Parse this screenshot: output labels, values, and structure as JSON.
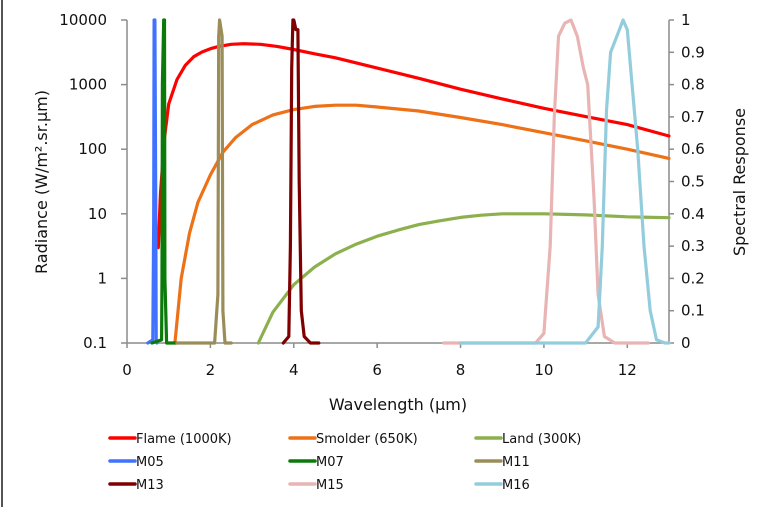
{
  "chart_data": {
    "type": "line",
    "title": "",
    "xlabel": "Wavelength (µm)",
    "ylabel": "Radiance (W/m².sr.µm)",
    "y2label": "Spectral Response",
    "xlim": [
      0,
      13
    ],
    "ylim": [
      0.1,
      10000
    ],
    "yscale": "log",
    "y2lim": [
      0,
      1
    ],
    "x_ticks": [
      "0",
      "2",
      "4",
      "6",
      "8",
      "10",
      "12"
    ],
    "x_tick_values": [
      0,
      2,
      4,
      6,
      8,
      10,
      12
    ],
    "y_ticks": [
      "0.1",
      "1",
      "10",
      "100",
      "1000",
      "10000"
    ],
    "y_tick_values": [
      0.1,
      1,
      10,
      100,
      1000,
      10000
    ],
    "y2_ticks": [
      "0",
      "0.1",
      "0.2",
      "0.3",
      "0.4",
      "0.5",
      "0.6",
      "0.7",
      "0.8",
      "0.9",
      "1"
    ],
    "y2_tick_values": [
      0,
      0.1,
      0.2,
      0.3,
      0.4,
      0.5,
      0.6,
      0.7,
      0.8,
      0.9,
      1
    ],
    "grid": false,
    "legend_position": "bottom",
    "series": [
      {
        "name": "Flame (1000K)",
        "axis": "left",
        "color": "#ff0000",
        "x": [
          0.75,
          0.8,
          0.9,
          1.0,
          1.2,
          1.4,
          1.6,
          1.8,
          2.0,
          2.2,
          2.5,
          2.8,
          3.2,
          3.6,
          4.0,
          4.5,
          5,
          6,
          7,
          8,
          9,
          10,
          11,
          12,
          13
        ],
        "y": [
          3,
          20,
          150,
          500,
          1200,
          2000,
          2700,
          3200,
          3600,
          3900,
          4200,
          4300,
          4200,
          3900,
          3500,
          3000,
          2600,
          1800,
          1250,
          850,
          600,
          430,
          320,
          240,
          160
        ]
      },
      {
        "name": "Smolder (650K)",
        "axis": "left",
        "color": "#ed7117",
        "x": [
          1.15,
          1.3,
          1.5,
          1.7,
          2.0,
          2.3,
          2.6,
          3.0,
          3.5,
          4.0,
          4.5,
          5.0,
          5.5,
          6,
          7,
          8,
          9,
          10,
          11,
          12,
          13
        ],
        "y": [
          0.1,
          1,
          5,
          15,
          40,
          90,
          150,
          240,
          340,
          410,
          460,
          480,
          480,
          450,
          390,
          310,
          240,
          180,
          135,
          100,
          72
        ]
      },
      {
        "name": "Land (300K)",
        "axis": "left",
        "color": "#8cb04e",
        "x": [
          3.15,
          3.5,
          4.0,
          4.5,
          5.0,
          5.5,
          6,
          6.5,
          7,
          7.5,
          8,
          8.5,
          9,
          10,
          11,
          12,
          13
        ],
        "y": [
          0.1,
          0.3,
          0.8,
          1.5,
          2.4,
          3.4,
          4.5,
          5.6,
          6.8,
          7.8,
          8.8,
          9.5,
          10,
          10,
          9.6,
          9.0,
          8.7
        ]
      },
      {
        "name": "M05",
        "axis": "right",
        "color": "#3f72ff",
        "x": [
          0.5,
          0.62,
          0.64,
          0.65,
          0.67,
          0.69,
          0.7,
          0.72
        ],
        "y": [
          0,
          0.01,
          0.38,
          1.0,
          1.0,
          0.4,
          0.01,
          0
        ]
      },
      {
        "name": "M07",
        "axis": "right",
        "color": "#0a7a0a",
        "x": [
          0.6,
          0.83,
          0.84,
          0.85,
          0.88,
          0.9,
          0.91,
          0.95,
          1.2
        ],
        "y": [
          0,
          0.01,
          0.2,
          0.8,
          1.0,
          1.0,
          0.2,
          0,
          0
        ]
      },
      {
        "name": "M11",
        "axis": "right",
        "color": "#9b8d5a",
        "x": [
          1.2,
          2.1,
          2.18,
          2.2,
          2.22,
          2.28,
          2.3,
          2.35,
          2.5
        ],
        "y": [
          0,
          0,
          0.15,
          0.95,
          1.0,
          0.95,
          0.1,
          0,
          0
        ]
      },
      {
        "name": "M13",
        "axis": "right",
        "color": "#7f0000",
        "x": [
          3.75,
          3.88,
          3.92,
          3.95,
          3.98,
          4.0,
          4.05,
          4.1,
          4.13,
          4.18,
          4.25,
          4.4,
          4.6
        ],
        "y": [
          0,
          0.02,
          0.3,
          0.85,
          1.0,
          1.0,
          0.97,
          0.97,
          0.5,
          0.1,
          0.02,
          0,
          0
        ]
      },
      {
        "name": "M15",
        "axis": "right",
        "color": "#e8b4b4",
        "x": [
          7.6,
          9.8,
          10.0,
          10.15,
          10.25,
          10.35,
          10.5,
          10.65,
          10.8,
          10.95,
          11.05,
          11.2,
          11.3,
          11.45,
          11.7,
          12.5
        ],
        "y": [
          0,
          0,
          0.03,
          0.3,
          0.7,
          0.95,
          0.99,
          1.0,
          0.95,
          0.85,
          0.8,
          0.45,
          0.15,
          0.02,
          0,
          0
        ]
      },
      {
        "name": "M16",
        "axis": "right",
        "color": "#93cddd",
        "x": [
          8.0,
          11.0,
          11.3,
          11.4,
          11.5,
          11.6,
          11.75,
          11.9,
          12.0,
          12.1,
          12.25,
          12.4,
          12.55,
          12.7,
          12.9,
          13.0
        ],
        "y": [
          0,
          0,
          0.05,
          0.3,
          0.72,
          0.9,
          0.95,
          1.0,
          0.97,
          0.82,
          0.6,
          0.3,
          0.1,
          0.01,
          0,
          0
        ]
      }
    ]
  }
}
